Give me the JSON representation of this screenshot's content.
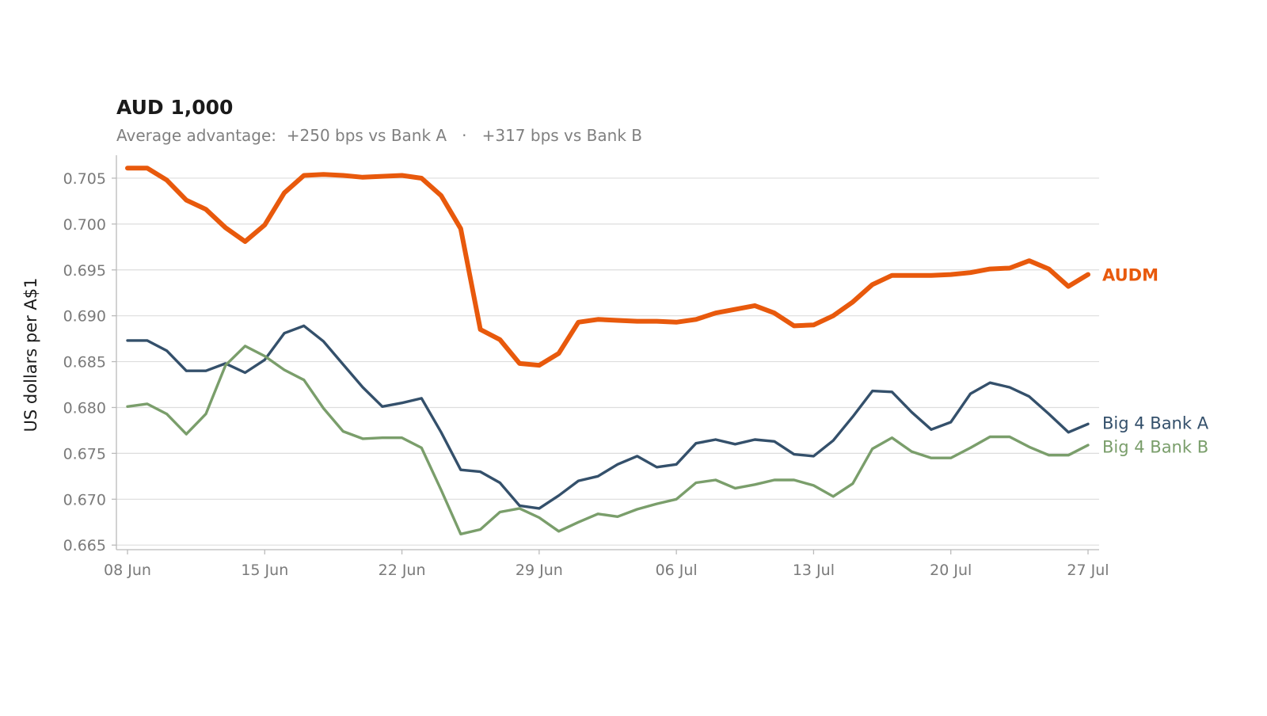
{
  "chart_data": {
    "type": "line",
    "title": "AUD 1,000",
    "subtitle": "Average advantage:  +250 bps vs Bank A   ·   +317 bps vs Bank B",
    "ylabel": "US dollars per A$1",
    "xlabel": "",
    "ylim": [
      0.6645,
      0.7075
    ],
    "yticks": [
      "0.665",
      "0.670",
      "0.675",
      "0.680",
      "0.685",
      "0.690",
      "0.695",
      "0.700",
      "0.705"
    ],
    "x_start": "08 Jun",
    "x_end": "27 Jul",
    "xticks": [
      "08 Jun",
      "15 Jun",
      "22 Jun",
      "29 Jun",
      "06 Jul",
      "13 Jul",
      "20 Jul",
      "27 Jul"
    ],
    "grid": true,
    "legend": "inline labels at right end of each line",
    "x": [
      "08 Jun",
      "09 Jun",
      "10 Jun",
      "11 Jun",
      "12 Jun",
      "13 Jun",
      "14 Jun",
      "15 Jun",
      "16 Jun",
      "17 Jun",
      "18 Jun",
      "19 Jun",
      "20 Jun",
      "21 Jun",
      "22 Jun",
      "23 Jun",
      "24 Jun",
      "25 Jun",
      "26 Jun",
      "27 Jun",
      "28 Jun",
      "29 Jun",
      "30 Jun",
      "01 Jul",
      "02 Jul",
      "03 Jul",
      "04 Jul",
      "05 Jul",
      "06 Jul",
      "07 Jul",
      "08 Jul",
      "09 Jul",
      "10 Jul",
      "11 Jul",
      "12 Jul",
      "13 Jul",
      "14 Jul",
      "15 Jul",
      "16 Jul",
      "17 Jul",
      "18 Jul",
      "19 Jul",
      "20 Jul",
      "21 Jul",
      "22 Jul",
      "23 Jul",
      "24 Jul",
      "25 Jul",
      "26 Jul",
      "27 Jul"
    ],
    "series": [
      {
        "name": "AUDM",
        "color": "#e8590c",
        "emphasis": true,
        "values": [
          0.7061,
          0.7061,
          0.7048,
          0.7026,
          0.7016,
          0.6996,
          0.6981,
          0.6999,
          0.7034,
          0.7053,
          0.7054,
          0.7053,
          0.7051,
          0.7052,
          0.7053,
          0.705,
          0.7031,
          0.6995,
          0.6885,
          0.6874,
          0.6848,
          0.6846,
          0.6859,
          0.6893,
          0.6896,
          0.6895,
          0.6894,
          0.6894,
          0.6893,
          0.6896,
          0.6903,
          0.6907,
          0.6911,
          0.6903,
          0.6889,
          0.689,
          0.69,
          0.6915,
          0.6934,
          0.6944,
          0.6944,
          0.6944,
          0.6945,
          0.6947,
          0.6951,
          0.6952,
          0.696,
          0.6951,
          0.6932,
          0.6945
        ]
      },
      {
        "name": "Big 4 Bank A",
        "color": "#34506b",
        "emphasis": false,
        "values": [
          0.6873,
          0.6873,
          0.6862,
          0.684,
          0.684,
          0.6848,
          0.6838,
          0.6852,
          0.6881,
          0.6889,
          0.6872,
          0.6847,
          0.6822,
          0.6801,
          0.6805,
          0.681,
          0.6773,
          0.6732,
          0.673,
          0.6718,
          0.6693,
          0.669,
          0.6704,
          0.672,
          0.6725,
          0.6738,
          0.6747,
          0.6735,
          0.6738,
          0.6761,
          0.6765,
          0.676,
          0.6765,
          0.6763,
          0.6749,
          0.6747,
          0.6764,
          0.679,
          0.6818,
          0.6817,
          0.6795,
          0.6776,
          0.6784,
          0.6815,
          0.6827,
          0.6822,
          0.6812,
          0.6793,
          0.6773,
          0.6782
        ]
      },
      {
        "name": "Big 4 Bank B",
        "color": "#7a9e6b",
        "emphasis": false,
        "values": [
          0.6801,
          0.6804,
          0.6793,
          0.6771,
          0.6793,
          0.6846,
          0.6867,
          0.6856,
          0.6841,
          0.683,
          0.6799,
          0.6774,
          0.6766,
          0.6767,
          0.6767,
          0.6756,
          0.671,
          0.6662,
          0.6667,
          0.6686,
          0.669,
          0.668,
          0.6665,
          0.6675,
          0.6684,
          0.6681,
          0.6689,
          0.6695,
          0.67,
          0.6718,
          0.6721,
          0.6712,
          0.6716,
          0.6721,
          0.6721,
          0.6715,
          0.6703,
          0.6717,
          0.6755,
          0.6767,
          0.6752,
          0.6745,
          0.6745,
          0.6756,
          0.6768,
          0.6768,
          0.6757,
          0.6748,
          0.6748,
          0.6759
        ]
      }
    ]
  }
}
